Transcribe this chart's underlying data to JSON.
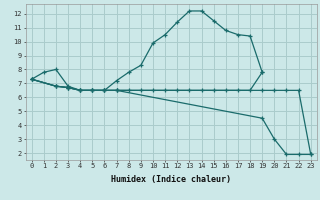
{
  "xlabel": "Humidex (Indice chaleur)",
  "background_color": "#cce8e8",
  "grid_color": "#aacccc",
  "line_color": "#1a6b6b",
  "xlim": [
    -0.5,
    23.5
  ],
  "ylim": [
    1.5,
    12.7
  ],
  "xticks": [
    0,
    1,
    2,
    3,
    4,
    5,
    6,
    7,
    8,
    9,
    10,
    11,
    12,
    13,
    14,
    15,
    16,
    17,
    18,
    19,
    20,
    21,
    22,
    23
  ],
  "yticks": [
    2,
    3,
    4,
    5,
    6,
    7,
    8,
    9,
    10,
    11,
    12
  ],
  "lines": [
    {
      "x": [
        0,
        1,
        2,
        3,
        4,
        5,
        6,
        7,
        8,
        9,
        10,
        11,
        12,
        13,
        14,
        15,
        16,
        17,
        18,
        19
      ],
      "y": [
        7.3,
        7.8,
        8.0,
        6.8,
        6.5,
        6.5,
        6.5,
        7.2,
        7.8,
        8.3,
        9.9,
        10.5,
        11.4,
        12.2,
        12.2,
        11.5,
        10.8,
        10.5,
        10.4,
        7.8
      ]
    },
    {
      "x": [
        0,
        2,
        3,
        4,
        5,
        6,
        7,
        8,
        9,
        10,
        11,
        12,
        13,
        14,
        15,
        16,
        17,
        18,
        19
      ],
      "y": [
        7.3,
        6.8,
        6.7,
        6.5,
        6.5,
        6.5,
        6.5,
        6.5,
        6.5,
        6.5,
        6.5,
        6.5,
        6.5,
        6.5,
        6.5,
        6.5,
        6.5,
        6.5,
        7.8
      ]
    },
    {
      "x": [
        0,
        2,
        3,
        4,
        5,
        6,
        7,
        19,
        20,
        21,
        22,
        23
      ],
      "y": [
        7.3,
        6.8,
        6.7,
        6.5,
        6.5,
        6.5,
        6.5,
        4.5,
        3.0,
        1.9,
        1.9,
        1.9
      ]
    },
    {
      "x": [
        0,
        2,
        3,
        4,
        5,
        6,
        7,
        19,
        20,
        21,
        22,
        23
      ],
      "y": [
        7.3,
        6.8,
        6.7,
        6.5,
        6.5,
        6.5,
        6.5,
        6.5,
        6.5,
        6.5,
        6.5,
        1.9
      ]
    }
  ]
}
